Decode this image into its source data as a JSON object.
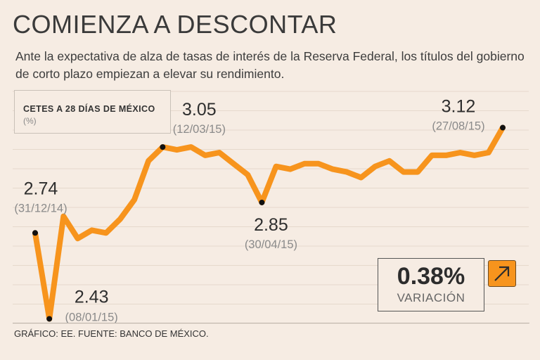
{
  "header": {
    "title": "COMIENZA A DESCONTAR",
    "subtitle": "Ante la expectativa de alza de tasas de interés de la Reserva Federal, los títulos del gobierno de corto plazo empiezan a elevar su rendimiento."
  },
  "legend": {
    "title": "CETES A 28 DÍAS DE MÉXICO",
    "unit": "(%)"
  },
  "variation": {
    "value": "0.38%",
    "label": "VARIACIÓN",
    "icon": "arrow-up-right-icon",
    "accent_color": "#f7941d"
  },
  "footer": {
    "source": "GRÁFICO: EE. FUENTE: BANCO DE MÉXICO."
  },
  "chart_data": {
    "type": "line",
    "title": "CETES A 28 DÍAS DE MÉXICO",
    "ylabel": "(%)",
    "ylim": [
      2.35,
      3.2
    ],
    "grid": true,
    "line_color": "#f7941d",
    "values": [
      2.74,
      2.43,
      2.8,
      2.72,
      2.75,
      2.74,
      2.79,
      2.86,
      3.0,
      3.05,
      3.04,
      3.05,
      3.02,
      3.03,
      2.99,
      2.95,
      2.85,
      2.98,
      2.97,
      2.99,
      2.99,
      2.97,
      2.96,
      2.94,
      2.98,
      3.0,
      2.96,
      2.96,
      3.02,
      3.02,
      3.03,
      3.02,
      3.03,
      3.12
    ],
    "annotations": [
      {
        "index": 0,
        "value": "2.74",
        "date": "(31/12/14)"
      },
      {
        "index": 1,
        "value": "2.43",
        "date": "(08/01/15)"
      },
      {
        "index": 9,
        "value": "3.05",
        "date": "(12/03/15)"
      },
      {
        "index": 16,
        "value": "2.85",
        "date": "(30/04/15)"
      },
      {
        "index": 33,
        "value": "3.12",
        "date": "(27/08/15)"
      }
    ]
  }
}
